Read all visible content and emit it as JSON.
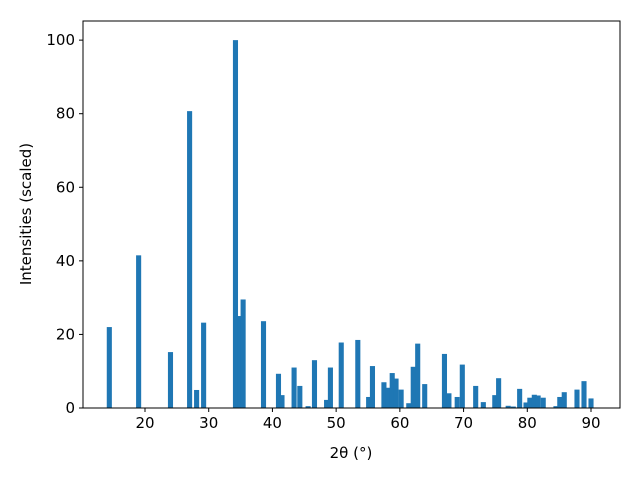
{
  "chart_data": {
    "type": "bar",
    "xlabel": "2θ (°)",
    "ylabel": "Intensities (scaled)",
    "color": "#1f77b4",
    "x": [
      14.4,
      19.0,
      24.0,
      27.0,
      28.1,
      29.2,
      34.2,
      34.9,
      35.4,
      38.6,
      40.95,
      41.5,
      43.4,
      44.3,
      45.6,
      46.6,
      48.5,
      49.1,
      50.8,
      53.4,
      55.1,
      55.7,
      57.5,
      58.1,
      58.8,
      59.4,
      60.2,
      61.4,
      62.1,
      62.8,
      63.9,
      67.0,
      67.7,
      69.0,
      69.8,
      71.9,
      73.1,
      74.9,
      75.5,
      77.0,
      77.8,
      78.8,
      79.8,
      80.4,
      81.1,
      81.7,
      82.5,
      84.5,
      85.1,
      85.8,
      87.8,
      88.9,
      90.0
    ],
    "values": [
      22,
      41.5,
      15.2,
      80.7,
      4.9,
      23.2,
      100,
      25,
      29.5,
      23.6,
      9.3,
      3.5,
      11,
      6,
      0.5,
      13,
      2.2,
      11,
      17.8,
      18.5,
      3,
      11.4,
      7,
      5.5,
      9.5,
      8,
      5,
      1.3,
      11.2,
      17.5,
      6.5,
      14.7,
      4,
      3,
      11.8,
      6,
      1.6,
      3.5,
      8.1,
      0.6,
      0.4,
      5.2,
      1.5,
      2.8,
      3.6,
      3.4,
      2.8,
      0.5,
      3,
      4.3,
      5,
      7.3,
      2.6
    ],
    "xlim": [
      10.27,
      94.55
    ],
    "ylim": [
      0,
      105.2
    ],
    "xticks": [
      20,
      30,
      40,
      50,
      60,
      70,
      80,
      90
    ],
    "yticks": [
      0,
      20,
      40,
      60,
      80,
      100
    ]
  }
}
